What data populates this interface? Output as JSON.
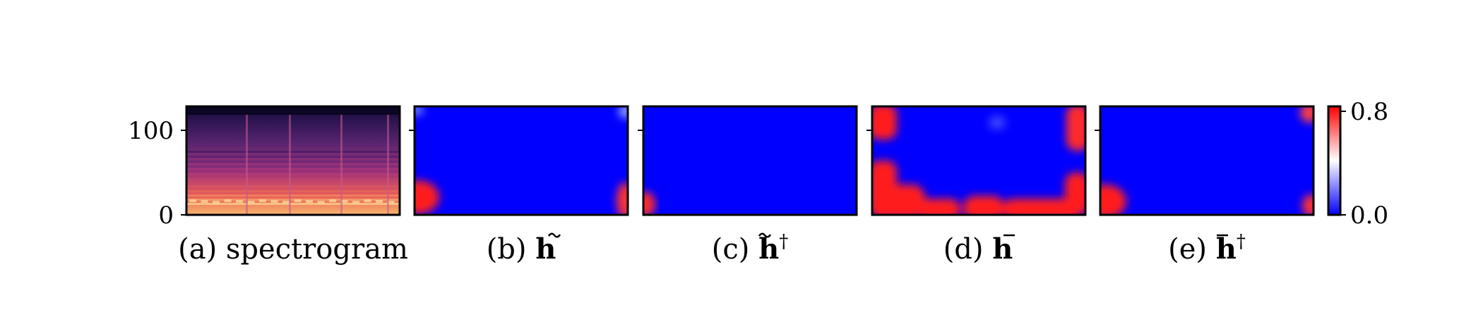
{
  "chart_data": {
    "type": "heatmap",
    "panels": [
      {
        "id": "a",
        "caption_prefix": "(a) spectrogram",
        "caption_symbol": "",
        "content": "spectrogram",
        "yticks": [
          0,
          100
        ],
        "ylim": [
          0,
          128
        ]
      },
      {
        "id": "b",
        "caption_prefix": "(b) ",
        "caption_symbol": "h",
        "symbol_accent": "tilde",
        "symbol_superscript": "",
        "content": "heatmap",
        "red_regions": [
          "bottom-left corner",
          "bottom-right corner"
        ]
      },
      {
        "id": "c",
        "caption_prefix": "(c) ",
        "caption_symbol": "h",
        "symbol_accent": "tilde",
        "symbol_superscript": "†",
        "content": "heatmap",
        "red_regions": [
          "bottom-left corner"
        ]
      },
      {
        "id": "d",
        "caption_prefix": "(d) ",
        "caption_symbol": "h",
        "symbol_accent": "bar",
        "symbol_superscript": "",
        "content": "heatmap",
        "red_regions": [
          "left edge",
          "right edge",
          "bottom edge",
          "top corners"
        ]
      },
      {
        "id": "e",
        "caption_prefix": "(e) ",
        "caption_symbol": "h",
        "symbol_accent": "bar",
        "symbol_superscript": "†",
        "content": "heatmap",
        "red_regions": [
          "bottom-left corner",
          "bottom-right corner",
          "top-right corner"
        ]
      }
    ],
    "colorbar": {
      "colormap": "bwr",
      "range": [
        0.0,
        0.8
      ],
      "tick_labels": [
        "0.8",
        "0.0"
      ],
      "colors": {
        "low": "#0000ff",
        "mid": "#ffffff",
        "high": "#ff0000"
      }
    },
    "spectrogram_colormap": "magma"
  }
}
